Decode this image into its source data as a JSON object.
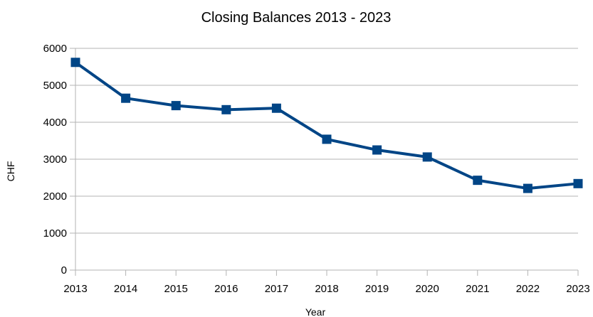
{
  "chart_data": {
    "type": "line",
    "title": "Closing Balances 2013 - 2023",
    "xlabel": "Year",
    "ylabel": "CHF",
    "x": [
      "2013",
      "2014",
      "2015",
      "2016",
      "2017",
      "2018",
      "2019",
      "2020",
      "2021",
      "2022",
      "2023"
    ],
    "series": [
      {
        "values": [
          5620,
          4650,
          4450,
          4340,
          4380,
          3540,
          3250,
          3060,
          2430,
          2210,
          2340
        ]
      }
    ],
    "ylim": [
      0,
      6000
    ],
    "yticks": [
      0,
      1000,
      2000,
      3000,
      4000,
      5000,
      6000
    ],
    "grid": "horizontal",
    "legend": "none",
    "colors": {
      "series": "#004586",
      "grid": "#b3b3b3",
      "text": "#000000"
    }
  }
}
